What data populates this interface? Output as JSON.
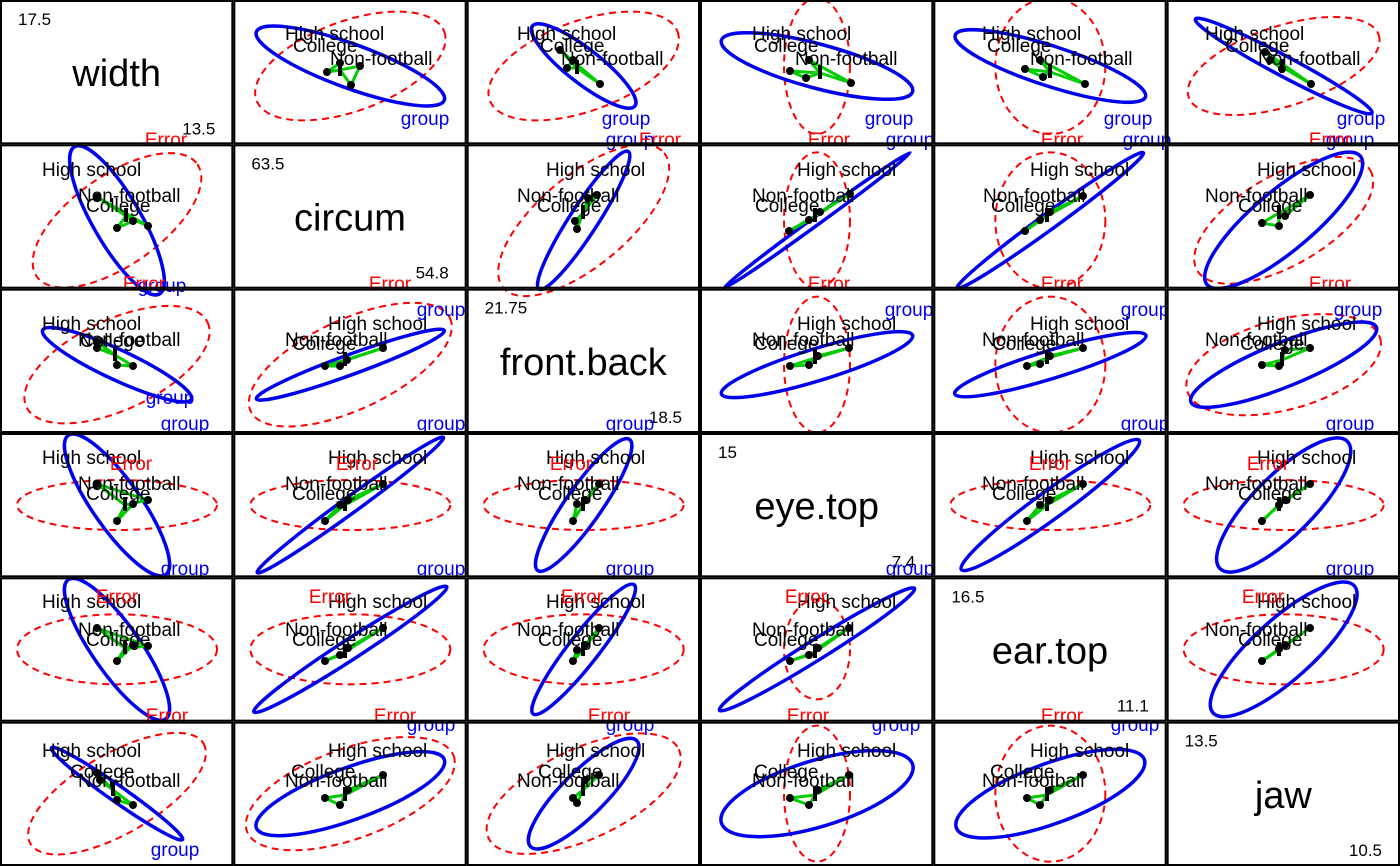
{
  "chart_data": {
    "type": "pairs-hypothesis-error-plot",
    "variables": [
      "width",
      "circum",
      "front.back",
      "eye.top",
      "ear.top",
      "jaw"
    ],
    "variable_ranges": [
      {
        "max": "17.5",
        "min": "13.5"
      },
      {
        "max": "63.5",
        "min": "54.8"
      },
      {
        "max": "21.75",
        "min": "18.5"
      },
      {
        "max": "15",
        "min": "7.4"
      },
      {
        "max": "16.5",
        "min": "11.1"
      },
      {
        "max": "13.5",
        "min": "10.5"
      }
    ],
    "group_levels": [
      "High school",
      "Non-football",
      "College"
    ],
    "hypothesis_label": "group",
    "error_label": "Error",
    "colors": {
      "hypothesis": "#0000ee",
      "error": "#ff0000",
      "contrasts": "#00cc00",
      "means": "#000000",
      "frame": "#000000"
    }
  }
}
